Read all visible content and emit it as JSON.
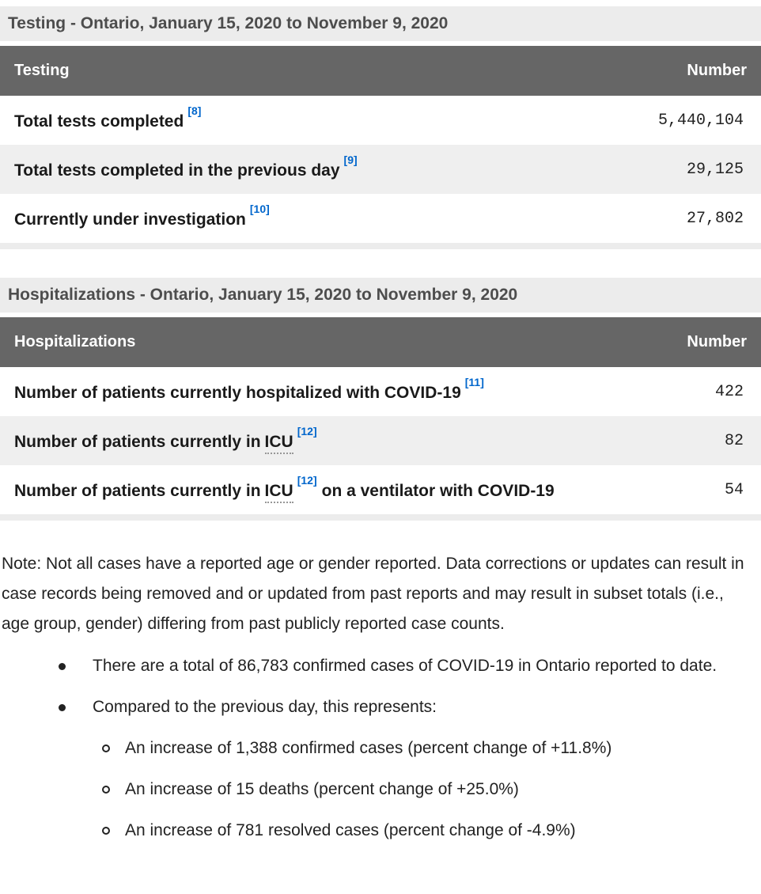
{
  "colors": {
    "accent_link": "#0066cc",
    "table_header_bg": "#666666",
    "row_stripe_bg": "#efefef",
    "caption_band_bg": "#ececec"
  },
  "testing_table": {
    "caption": "Testing - Ontario, January 15, 2020 to November 9, 2020",
    "col_label": "Testing",
    "col_value": "Number",
    "rows": [
      {
        "label": "Total tests completed",
        "footnote": "[8]",
        "value": "5,440,104"
      },
      {
        "label": "Total tests completed in the previous day",
        "footnote": "[9]",
        "value": "29,125"
      },
      {
        "label": "Currently under investigation",
        "footnote": "[10]",
        "value": "27,802"
      }
    ]
  },
  "hospitalizations_table": {
    "caption": "Hospitalizations - Ontario, January 15, 2020 to November 9, 2020",
    "col_label": "Hospitalizations",
    "col_value": "Number",
    "rows": [
      {
        "label": "Number of patients currently hospitalized with COVID-19",
        "footnote": "[11]",
        "value": "422"
      },
      {
        "label": "Number of patients currently in",
        "abbr": "ICU",
        "footnote": "[12]",
        "value": "82"
      },
      {
        "label": "Number of patients currently in",
        "abbr": "ICU",
        "footnote": "[12]",
        "label_suffix": "on a ventilator with COVID-19",
        "value": "54"
      }
    ]
  },
  "note": "Note: Not all cases have a reported age or gender reported. Data corrections or updates can result in case records being removed and or updated from past reports and may result in subset totals (i.e., age group, gender) differing from past publicly reported case counts.",
  "summary": {
    "items": [
      {
        "text": "There are a total of 86,783 confirmed cases of COVID-19 in Ontario reported to date."
      },
      {
        "text": "Compared to the previous day, this represents:"
      }
    ],
    "sub_items": [
      "An increase of 1,388 confirmed cases (percent change of +11.8%)",
      "An increase of 15 deaths (percent change of +25.0%)",
      "An increase of 781 resolved cases (percent change of -4.9%)"
    ]
  }
}
